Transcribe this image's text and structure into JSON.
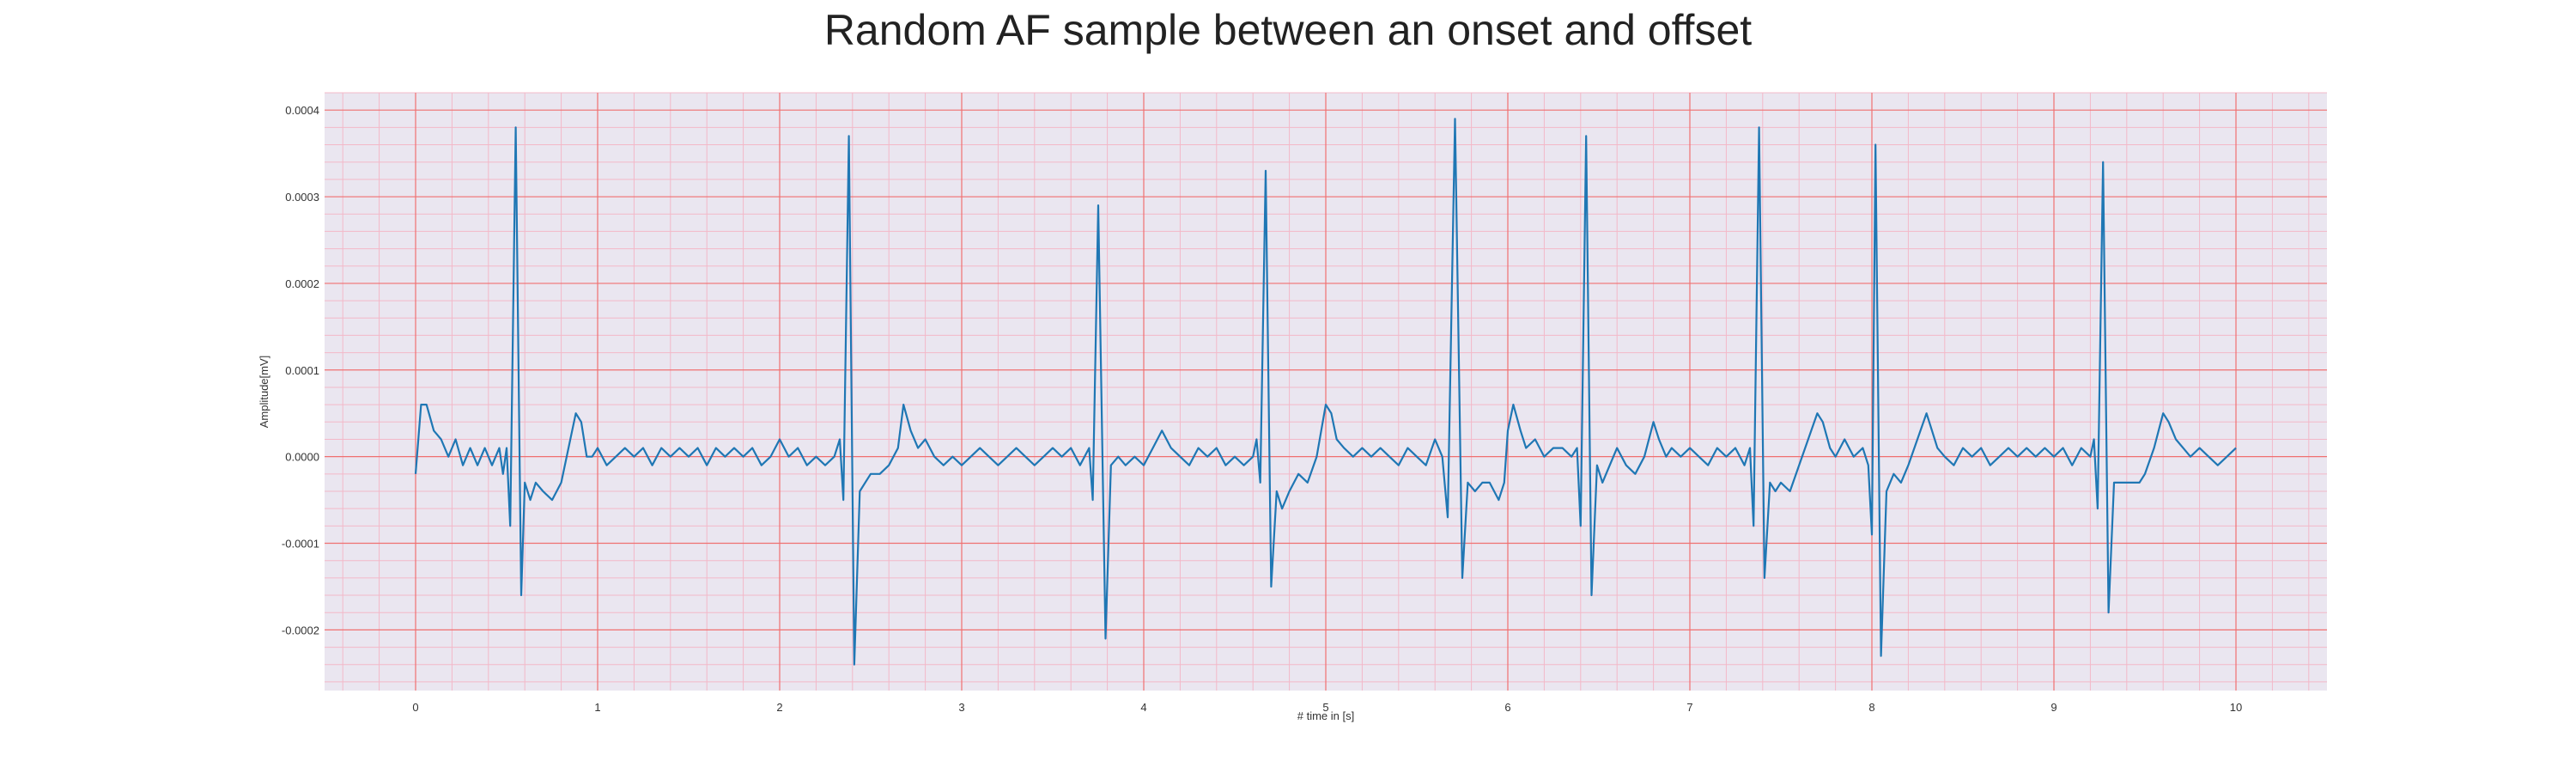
{
  "chart_data": {
    "type": "line",
    "title": "Random AF sample between an onset and offset",
    "xlabel": "# time in [s]",
    "ylabel": "Amplitude[mV]",
    "xlim": [
      -0.5,
      10.5
    ],
    "ylim": [
      -0.00027,
      0.00042
    ],
    "x_ticks": [
      0,
      1,
      2,
      3,
      4,
      5,
      6,
      7,
      8,
      9,
      10
    ],
    "x_tick_labels": [
      "0",
      "1",
      "2",
      "3",
      "4",
      "5",
      "6",
      "7",
      "8",
      "9",
      "10"
    ],
    "y_ticks": [
      -0.0002,
      -0.0001,
      0.0,
      0.0001,
      0.0002,
      0.0003,
      0.0004
    ],
    "y_tick_labels": [
      "-0.0002",
      "-0.0001",
      "0.0000",
      "0.0001",
      "0.0002",
      "0.0003",
      "0.0004"
    ],
    "grid": true,
    "background_color": "#eae6f0",
    "major_grid_color": "#f07070",
    "minor_grid_color": "#f3b8c8",
    "series": [
      {
        "color": "#1f77b4",
        "points": [
          [
            0.0,
            -2e-05
          ],
          [
            0.03,
            6e-05
          ],
          [
            0.06,
            6e-05
          ],
          [
            0.1,
            3e-05
          ],
          [
            0.14,
            2e-05
          ],
          [
            0.18,
            0.0
          ],
          [
            0.22,
            2e-05
          ],
          [
            0.26,
            -1e-05
          ],
          [
            0.3,
            1e-05
          ],
          [
            0.34,
            -1e-05
          ],
          [
            0.38,
            1e-05
          ],
          [
            0.42,
            -1e-05
          ],
          [
            0.46,
            1e-05
          ],
          [
            0.48,
            -2e-05
          ],
          [
            0.5,
            1e-05
          ],
          [
            0.52,
            -8e-05
          ],
          [
            0.55,
            0.00038
          ],
          [
            0.58,
            -0.00016
          ],
          [
            0.6,
            -3e-05
          ],
          [
            0.63,
            -5e-05
          ],
          [
            0.66,
            -3e-05
          ],
          [
            0.7,
            -4e-05
          ],
          [
            0.75,
            -5e-05
          ],
          [
            0.8,
            -3e-05
          ],
          [
            0.85,
            2e-05
          ],
          [
            0.88,
            5e-05
          ],
          [
            0.91,
            4e-05
          ],
          [
            0.94,
            0.0
          ],
          [
            0.97,
            0.0
          ],
          [
            1.0,
            1e-05
          ],
          [
            1.05,
            -1e-05
          ],
          [
            1.1,
            0.0
          ],
          [
            1.15,
            1e-05
          ],
          [
            1.2,
            0.0
          ],
          [
            1.25,
            1e-05
          ],
          [
            1.3,
            -1e-05
          ],
          [
            1.35,
            1e-05
          ],
          [
            1.4,
            0.0
          ],
          [
            1.45,
            1e-05
          ],
          [
            1.5,
            0.0
          ],
          [
            1.55,
            1e-05
          ],
          [
            1.6,
            -1e-05
          ],
          [
            1.65,
            1e-05
          ],
          [
            1.7,
            0.0
          ],
          [
            1.75,
            1e-05
          ],
          [
            1.8,
            0.0
          ],
          [
            1.85,
            1e-05
          ],
          [
            1.9,
            -1e-05
          ],
          [
            1.95,
            0.0
          ],
          [
            2.0,
            2e-05
          ],
          [
            2.05,
            0.0
          ],
          [
            2.1,
            1e-05
          ],
          [
            2.15,
            -1e-05
          ],
          [
            2.2,
            0.0
          ],
          [
            2.25,
            -1e-05
          ],
          [
            2.3,
            0.0
          ],
          [
            2.33,
            2e-05
          ],
          [
            2.35,
            -5e-05
          ],
          [
            2.38,
            0.00037
          ],
          [
            2.41,
            -0.00024
          ],
          [
            2.44,
            -4e-05
          ],
          [
            2.47,
            -3e-05
          ],
          [
            2.5,
            -2e-05
          ],
          [
            2.55,
            -2e-05
          ],
          [
            2.6,
            -1e-05
          ],
          [
            2.65,
            1e-05
          ],
          [
            2.68,
            6e-05
          ],
          [
            2.72,
            3e-05
          ],
          [
            2.76,
            1e-05
          ],
          [
            2.8,
            2e-05
          ],
          [
            2.85,
            0.0
          ],
          [
            2.9,
            -1e-05
          ],
          [
            2.95,
            0.0
          ],
          [
            3.0,
            -1e-05
          ],
          [
            3.05,
            0.0
          ],
          [
            3.1,
            1e-05
          ],
          [
            3.15,
            0.0
          ],
          [
            3.2,
            -1e-05
          ],
          [
            3.25,
            0.0
          ],
          [
            3.3,
            1e-05
          ],
          [
            3.35,
            0.0
          ],
          [
            3.4,
            -1e-05
          ],
          [
            3.45,
            0.0
          ],
          [
            3.5,
            1e-05
          ],
          [
            3.55,
            0.0
          ],
          [
            3.6,
            1e-05
          ],
          [
            3.65,
            -1e-05
          ],
          [
            3.7,
            1e-05
          ],
          [
            3.72,
            -5e-05
          ],
          [
            3.75,
            0.00029
          ],
          [
            3.79,
            -0.00021
          ],
          [
            3.82,
            -1e-05
          ],
          [
            3.86,
            0.0
          ],
          [
            3.9,
            -1e-05
          ],
          [
            3.95,
            0.0
          ],
          [
            4.0,
            -1e-05
          ],
          [
            4.05,
            1e-05
          ],
          [
            4.1,
            3e-05
          ],
          [
            4.15,
            1e-05
          ],
          [
            4.2,
            0.0
          ],
          [
            4.25,
            -1e-05
          ],
          [
            4.3,
            1e-05
          ],
          [
            4.35,
            0.0
          ],
          [
            4.4,
            1e-05
          ],
          [
            4.45,
            -1e-05
          ],
          [
            4.5,
            0.0
          ],
          [
            4.55,
            -1e-05
          ],
          [
            4.6,
            0.0
          ],
          [
            4.62,
            2e-05
          ],
          [
            4.64,
            -3e-05
          ],
          [
            4.67,
            0.00033
          ],
          [
            4.7,
            -0.00015
          ],
          [
            4.73,
            -4e-05
          ],
          [
            4.76,
            -6e-05
          ],
          [
            4.8,
            -4e-05
          ],
          [
            4.85,
            -2e-05
          ],
          [
            4.9,
            -3e-05
          ],
          [
            4.95,
            0.0
          ],
          [
            5.0,
            6e-05
          ],
          [
            5.03,
            5e-05
          ],
          [
            5.06,
            2e-05
          ],
          [
            5.1,
            1e-05
          ],
          [
            5.15,
            0.0
          ],
          [
            5.2,
            1e-05
          ],
          [
            5.25,
            0.0
          ],
          [
            5.3,
            1e-05
          ],
          [
            5.35,
            0.0
          ],
          [
            5.4,
            -1e-05
          ],
          [
            5.45,
            1e-05
          ],
          [
            5.5,
            0.0
          ],
          [
            5.55,
            -1e-05
          ],
          [
            5.6,
            2e-05
          ],
          [
            5.64,
            0.0
          ],
          [
            5.67,
            -7e-05
          ],
          [
            5.71,
            0.00039
          ],
          [
            5.75,
            -0.00014
          ],
          [
            5.78,
            -3e-05
          ],
          [
            5.82,
            -4e-05
          ],
          [
            5.86,
            -3e-05
          ],
          [
            5.9,
            -3e-05
          ],
          [
            5.95,
            -5e-05
          ],
          [
            5.98,
            -3e-05
          ],
          [
            6.0,
            3e-05
          ],
          [
            6.03,
            6e-05
          ],
          [
            6.07,
            3e-05
          ],
          [
            6.1,
            1e-05
          ],
          [
            6.15,
            2e-05
          ],
          [
            6.2,
            0.0
          ],
          [
            6.25,
            1e-05
          ],
          [
            6.3,
            1e-05
          ],
          [
            6.35,
            0.0
          ],
          [
            6.38,
            1e-05
          ],
          [
            6.4,
            -8e-05
          ],
          [
            6.43,
            0.00037
          ],
          [
            6.46,
            -0.00016
          ],
          [
            6.49,
            -1e-05
          ],
          [
            6.52,
            -3e-05
          ],
          [
            6.56,
            -1e-05
          ],
          [
            6.6,
            1e-05
          ],
          [
            6.65,
            -1e-05
          ],
          [
            6.7,
            -2e-05
          ],
          [
            6.75,
            0.0
          ],
          [
            6.8,
            4e-05
          ],
          [
            6.83,
            2e-05
          ],
          [
            6.87,
            0.0
          ],
          [
            6.9,
            1e-05
          ],
          [
            6.95,
            0.0
          ],
          [
            7.0,
            1e-05
          ],
          [
            7.05,
            0.0
          ],
          [
            7.1,
            -1e-05
          ],
          [
            7.15,
            1e-05
          ],
          [
            7.2,
            0.0
          ],
          [
            7.25,
            1e-05
          ],
          [
            7.3,
            -1e-05
          ],
          [
            7.33,
            1e-05
          ],
          [
            7.35,
            -8e-05
          ],
          [
            7.38,
            0.00038
          ],
          [
            7.41,
            -0.00014
          ],
          [
            7.44,
            -3e-05
          ],
          [
            7.47,
            -4e-05
          ],
          [
            7.5,
            -3e-05
          ],
          [
            7.55,
            -4e-05
          ],
          [
            7.6,
            -1e-05
          ],
          [
            7.65,
            2e-05
          ],
          [
            7.7,
            5e-05
          ],
          [
            7.73,
            4e-05
          ],
          [
            7.77,
            1e-05
          ],
          [
            7.8,
            0.0
          ],
          [
            7.85,
            2e-05
          ],
          [
            7.9,
            0.0
          ],
          [
            7.95,
            1e-05
          ],
          [
            7.98,
            -1e-05
          ],
          [
            8.0,
            -9e-05
          ],
          [
            8.02,
            0.00036
          ],
          [
            8.05,
            -0.00023
          ],
          [
            8.08,
            -4e-05
          ],
          [
            8.12,
            -2e-05
          ],
          [
            8.16,
            -3e-05
          ],
          [
            8.2,
            -1e-05
          ],
          [
            8.25,
            2e-05
          ],
          [
            8.3,
            5e-05
          ],
          [
            8.33,
            3e-05
          ],
          [
            8.36,
            1e-05
          ],
          [
            8.4,
            0.0
          ],
          [
            8.45,
            -1e-05
          ],
          [
            8.5,
            1e-05
          ],
          [
            8.55,
            0.0
          ],
          [
            8.6,
            1e-05
          ],
          [
            8.65,
            -1e-05
          ],
          [
            8.7,
            0.0
          ],
          [
            8.75,
            1e-05
          ],
          [
            8.8,
            0.0
          ],
          [
            8.85,
            1e-05
          ],
          [
            8.9,
            0.0
          ],
          [
            8.95,
            1e-05
          ],
          [
            9.0,
            0.0
          ],
          [
            9.05,
            1e-05
          ],
          [
            9.1,
            -1e-05
          ],
          [
            9.15,
            1e-05
          ],
          [
            9.2,
            0.0
          ],
          [
            9.22,
            2e-05
          ],
          [
            9.24,
            -6e-05
          ],
          [
            9.27,
            0.00034
          ],
          [
            9.3,
            -0.00018
          ],
          [
            9.33,
            -3e-05
          ],
          [
            9.37,
            -3e-05
          ],
          [
            9.42,
            -3e-05
          ],
          [
            9.47,
            -3e-05
          ],
          [
            9.5,
            -2e-05
          ],
          [
            9.55,
            1e-05
          ],
          [
            9.6,
            5e-05
          ],
          [
            9.63,
            4e-05
          ],
          [
            9.67,
            2e-05
          ],
          [
            9.71,
            1e-05
          ],
          [
            9.75,
            0.0
          ],
          [
            9.8,
            1e-05
          ],
          [
            9.85,
            0.0
          ],
          [
            9.9,
            -1e-05
          ],
          [
            9.95,
            0.0
          ],
          [
            10.0,
            1e-05
          ]
        ]
      }
    ]
  }
}
